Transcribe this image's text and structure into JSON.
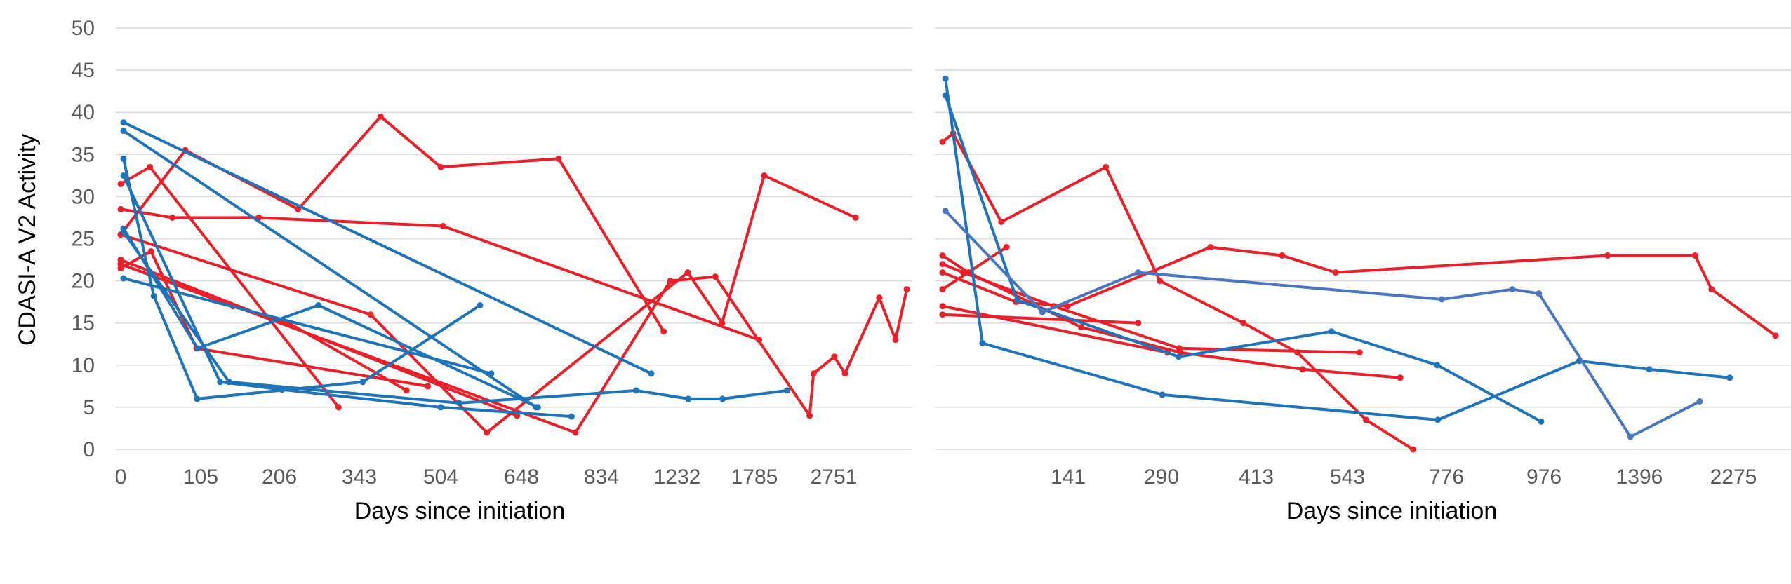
{
  "colors": {
    "red": "#e8202a",
    "blue": "#1f73b8",
    "blue_light": "#4a76c0",
    "grid": "#d9d9d9",
    "tick_text": "#595959",
    "label_text": "#000000"
  },
  "chart_data": [
    {
      "type": "line",
      "ylabel": "CDASI-A V2 Activity",
      "xlabel": "Days since initiation",
      "ylim": [
        0,
        50
      ],
      "yticks": [
        "0",
        "5",
        "10",
        "15",
        "20",
        "25",
        "30",
        "35",
        "40",
        "45",
        "50"
      ],
      "xtick_labels": [
        "0",
        "105",
        "206",
        "343",
        "504",
        "648",
        "834",
        "1232",
        "1785",
        "2751"
      ],
      "x_axis": "categorical (non-linear day spacing)",
      "grid": true,
      "legend": "none",
      "series": [
        {
          "color": "red",
          "points": [
            [
              0,
              31.5
            ],
            [
              52,
              33.5
            ],
            [
              388,
              5
            ]
          ]
        },
        {
          "color": "red",
          "points": [
            [
              0,
              25.5
            ],
            [
              115,
              35.5
            ],
            [
              316,
              28.5
            ],
            [
              463,
              39.5
            ],
            [
              570,
              33.5
            ],
            [
              780,
              34.5
            ],
            [
              967,
              14
            ]
          ]
        },
        {
          "color": "red",
          "points": [
            [
              0,
              28.5
            ],
            [
              92,
              27.5
            ],
            [
              246,
              27.5
            ],
            [
              574,
              26.5
            ],
            [
              1137,
              13
            ]
          ]
        },
        {
          "color": "red",
          "points": [
            [
              0,
              22
            ],
            [
              200,
              17
            ],
            [
              299,
              15
            ],
            [
              509,
              7
            ]
          ]
        },
        {
          "color": "red",
          "points": [
            [
              0,
              21.5
            ],
            [
              54,
              23.5
            ],
            [
              135,
              12
            ],
            [
              547,
              7.5
            ]
          ]
        },
        {
          "color": "red",
          "points": [
            [
              0,
              25.5
            ],
            [
              445,
              16
            ],
            [
              652,
              2
            ],
            [
              1010,
              21
            ],
            [
              1071,
              15
            ],
            [
              1146,
              32.5
            ],
            [
              1309,
              27.5
            ]
          ]
        },
        {
          "color": "red",
          "points": [
            [
              0,
              22.5
            ],
            [
              706,
              4
            ]
          ]
        },
        {
          "color": "red",
          "points": [
            [
              0,
              22
            ],
            [
              810,
              2
            ],
            [
              979,
              20
            ],
            [
              1059,
              20.5
            ],
            [
              1227,
              4
            ],
            [
              1234,
              9
            ],
            [
              1271,
              11
            ],
            [
              1290,
              9
            ],
            [
              1351,
              18
            ],
            [
              1380,
              13
            ],
            [
              1400,
              19
            ]
          ]
        },
        {
          "color": "blue",
          "points": [
            [
              5,
              20.3
            ],
            [
              660,
              9
            ]
          ]
        },
        {
          "color": "blue",
          "points": [
            [
              5,
              38.8
            ],
            [
              945,
              9
            ]
          ]
        },
        {
          "color": "blue",
          "points": [
            [
              5,
              37.8
            ],
            [
              740,
              5
            ]
          ]
        },
        {
          "color": "blue",
          "points": [
            [
              5,
              34.5
            ],
            [
              59,
              18.2
            ],
            [
              136,
              6
            ],
            [
              431,
              8
            ],
            [
              640,
              17.1
            ]
          ]
        },
        {
          "color": "blue",
          "points": [
            [
              5,
              32.5
            ],
            [
              177,
              8
            ],
            [
              287,
              7.1
            ],
            [
              570,
              5
            ],
            [
              803,
              3.9
            ]
          ]
        },
        {
          "color": "blue",
          "points": [
            [
              5,
              26.2
            ],
            [
              137,
              12
            ],
            [
              352,
              17.1
            ],
            [
              743,
              5
            ]
          ]
        },
        {
          "color": "blue",
          "points": [
            [
              5,
              25.8
            ],
            [
              193,
              8
            ],
            [
              603,
              5.5
            ],
            [
              918,
              7
            ],
            [
              1011,
              6
            ],
            [
              1072,
              6
            ],
            [
              1187,
              7
            ]
          ]
        }
      ]
    },
    {
      "type": "line",
      "ylabel": "",
      "xlabel": "Days since initiation",
      "ylim": [
        0,
        50
      ],
      "xtick_labels": [
        "141",
        "290",
        "413",
        "543",
        "776",
        "976",
        "1396",
        "2275"
      ],
      "x_axis": "categorical (non-linear day spacing)",
      "grid": true,
      "legend": "none",
      "series": [
        {
          "color": "red",
          "points": [
            [
              0,
              36.5
            ],
            [
              18,
              37.5
            ],
            [
              100,
              27
            ],
            [
              278,
              33.5
            ],
            [
              370,
              20
            ],
            [
              512,
              15
            ],
            [
              604,
              11.5
            ],
            [
              721,
              3.5
            ],
            [
              801,
              0
            ]
          ]
        },
        {
          "color": "red",
          "points": [
            [
              0,
              23
            ],
            [
              44,
              21
            ],
            [
              236,
              14.5
            ],
            [
              405,
              11.5
            ],
            [
              613,
              9.5
            ],
            [
              779,
              8.5
            ]
          ]
        },
        {
          "color": "red",
          "points": [
            [
              0,
              22
            ],
            [
              35,
              21
            ],
            [
              189,
              17
            ],
            [
              403,
              12
            ],
            [
              710,
              11.5
            ]
          ]
        },
        {
          "color": "red",
          "points": [
            [
              0,
              21
            ],
            [
              125,
              17.5
            ],
            [
              213,
              17
            ],
            [
              456,
              24
            ],
            [
              578,
              23
            ],
            [
              669,
              21
            ],
            [
              1132,
              23
            ],
            [
              1281,
              23
            ],
            [
              1309,
              19
            ],
            [
              1418,
              13.5
            ]
          ]
        },
        {
          "color": "red",
          "points": [
            [
              0,
              19
            ],
            [
              109,
              24
            ]
          ]
        },
        {
          "color": "red",
          "points": [
            [
              0,
              17
            ],
            [
              383,
              11.5
            ]
          ]
        },
        {
          "color": "red",
          "points": [
            [
              0,
              16
            ],
            [
              333,
              15
            ]
          ]
        },
        {
          "color": "blue",
          "points": [
            [
              5,
              44
            ],
            [
              68,
              12.6
            ],
            [
              374,
              6.5
            ],
            [
              843,
              3.5
            ],
            [
              1084,
              10.5
            ],
            [
              1203,
              9.5
            ],
            [
              1340,
              8.5
            ]
          ]
        },
        {
          "color": "blue",
          "points": [
            [
              5,
              42
            ],
            [
              127,
              17.7
            ],
            [
              402,
              11
            ],
            [
              662,
              14
            ],
            [
              842,
              10
            ],
            [
              1019,
              3.3
            ]
          ]
        },
        {
          "color": "blue_light",
          "points": [
            [
              5,
              28.3
            ],
            [
              170,
              16.3
            ],
            [
              333,
              21
            ],
            [
              850,
              17.8
            ],
            [
              970,
              19
            ],
            [
              1015,
              18.5
            ],
            [
              1171,
              1.5
            ],
            [
              1289,
              5.7
            ]
          ]
        }
      ]
    }
  ]
}
